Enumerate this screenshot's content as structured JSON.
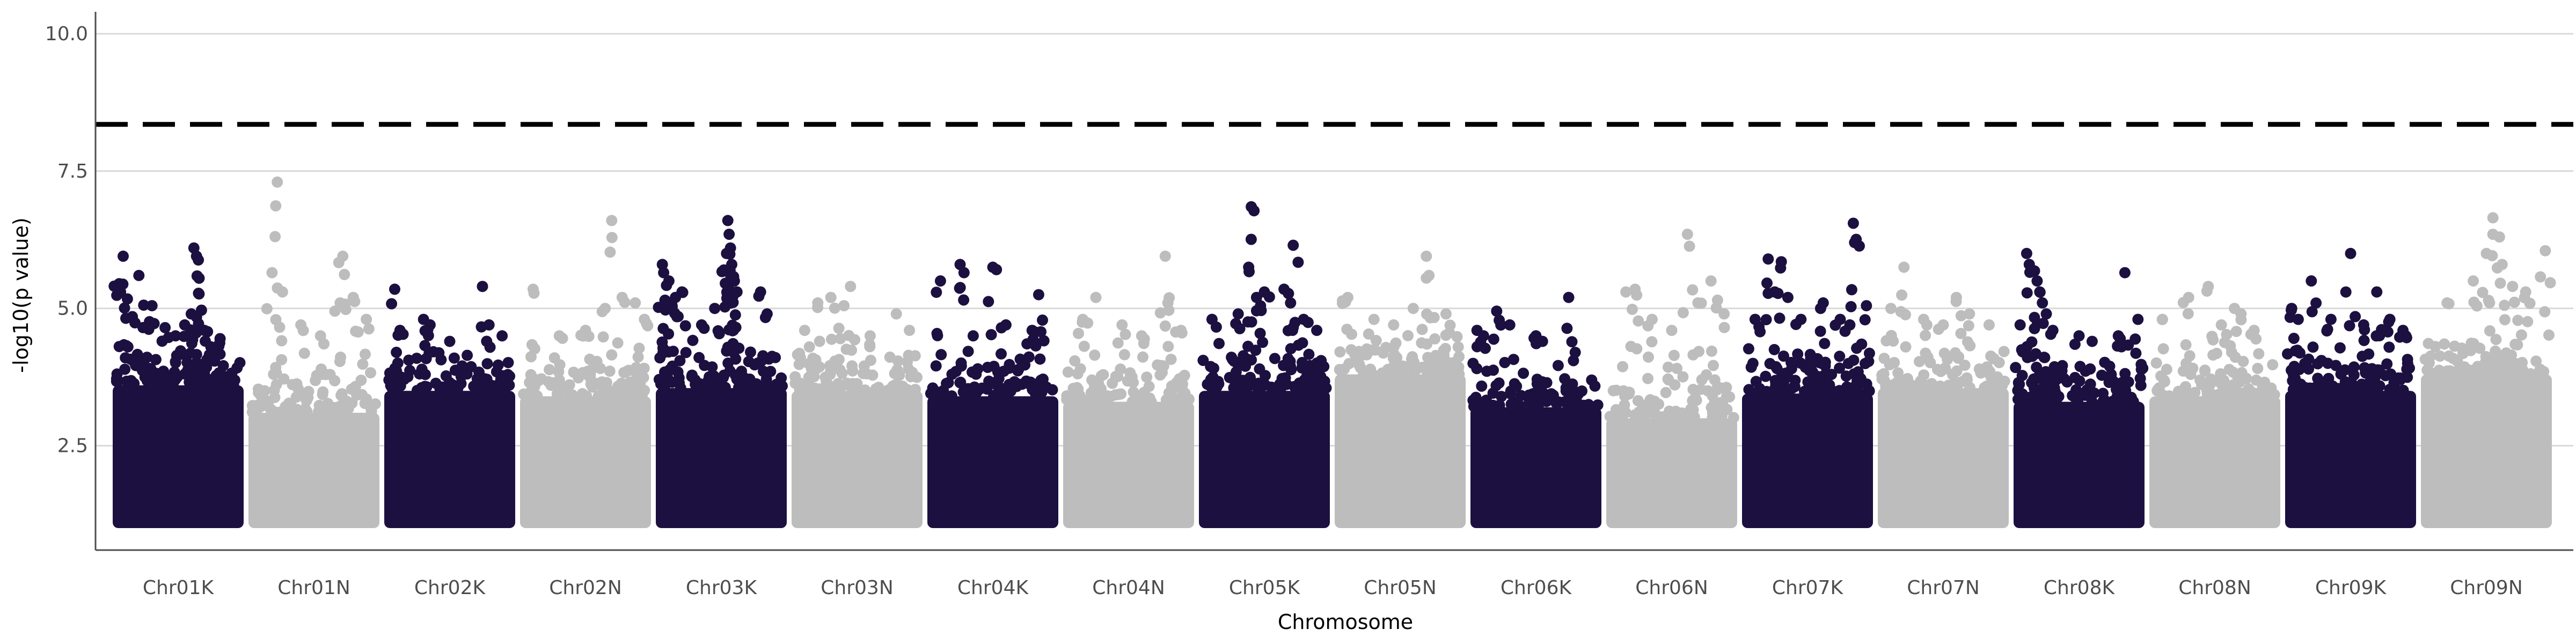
{
  "chart_data": {
    "type": "scatter",
    "subtype": "manhattan",
    "title": "",
    "xlabel": "Chromosome",
    "ylabel": "-log10(p value)",
    "ylim": [
      0.6,
      10.4
    ],
    "y_ticks": [
      {
        "value": 2.5,
        "label": "2.5"
      },
      {
        "value": 5.0,
        "label": "5.0"
      },
      {
        "value": 7.5,
        "label": "7.5"
      },
      {
        "value": 10.0,
        "label": "10.0"
      }
    ],
    "grid": {
      "horizontal_major": true,
      "vertical": false
    },
    "threshold": {
      "value": 8.35,
      "style": "dashed",
      "color": "#000000"
    },
    "colors": {
      "dark": "#1c1040",
      "light": "#bdbdbd",
      "grid": "#d9d9d9",
      "axis": "#4d4d4d"
    },
    "point_floor": 1.0,
    "categories": [
      "Chr01K",
      "Chr01N",
      "Chr02K",
      "Chr02N",
      "Chr03K",
      "Chr03N",
      "Chr04K",
      "Chr04N",
      "Chr05K",
      "Chr05N",
      "Chr06K",
      "Chr06N",
      "Chr07K",
      "Chr07N",
      "Chr08K",
      "Chr08N",
      "Chr09K",
      "Chr09N"
    ],
    "series": [
      {
        "chromosome": "Chr01K",
        "color": "dark",
        "band_top": 3.6,
        "peak_points": [
          [
            0.05,
            5.45
          ],
          [
            0.06,
            5.3
          ],
          [
            0.08,
            5.95
          ],
          [
            0.15,
            4.85
          ],
          [
            0.2,
            5.6
          ],
          [
            0.3,
            5.05
          ],
          [
            0.4,
            4.65
          ],
          [
            0.48,
            4.5
          ],
          [
            0.55,
            4.7
          ],
          [
            0.6,
            4.9
          ],
          [
            0.62,
            6.1
          ],
          [
            0.64,
            5.95
          ],
          [
            0.66,
            5.55
          ],
          [
            0.7,
            4.6
          ],
          [
            0.75,
            4.3
          ],
          [
            0.82,
            4.45
          ]
        ]
      },
      {
        "chromosome": "Chr01N",
        "color": "light",
        "band_top": 3.1,
        "peak_points": [
          [
            0.18,
            5.65
          ],
          [
            0.22,
            7.3
          ],
          [
            0.26,
            5.3
          ],
          [
            0.4,
            4.7
          ],
          [
            0.55,
            4.5
          ],
          [
            0.7,
            5.1
          ],
          [
            0.72,
            5.95
          ],
          [
            0.8,
            5.2
          ],
          [
            0.9,
            4.8
          ]
        ]
      },
      {
        "chromosome": "Chr02K",
        "color": "dark",
        "band_top": 3.5,
        "peak_points": [
          [
            0.08,
            5.35
          ],
          [
            0.12,
            4.6
          ],
          [
            0.3,
            4.8
          ],
          [
            0.35,
            4.7
          ],
          [
            0.5,
            4.4
          ],
          [
            0.75,
            5.4
          ],
          [
            0.8,
            4.7
          ],
          [
            0.9,
            4.5
          ]
        ]
      },
      {
        "chromosome": "Chr02N",
        "color": "light",
        "band_top": 3.4,
        "peak_points": [
          [
            0.1,
            5.35
          ],
          [
            0.3,
            4.5
          ],
          [
            0.5,
            4.6
          ],
          [
            0.65,
            5.0
          ],
          [
            0.7,
            6.6
          ],
          [
            0.78,
            5.2
          ],
          [
            0.88,
            5.1
          ],
          [
            0.95,
            4.8
          ]
        ]
      },
      {
        "chromosome": "Chr03K",
        "color": "dark",
        "band_top": 3.55,
        "peak_points": [
          [
            0.05,
            5.8
          ],
          [
            0.06,
            5.65
          ],
          [
            0.1,
            5.5
          ],
          [
            0.15,
            5.2
          ],
          [
            0.2,
            5.3
          ],
          [
            0.35,
            4.7
          ],
          [
            0.45,
            5.0
          ],
          [
            0.52,
            5.7
          ],
          [
            0.54,
            6.0
          ],
          [
            0.55,
            6.6
          ],
          [
            0.56,
            6.35
          ],
          [
            0.57,
            6.1
          ],
          [
            0.58,
            5.8
          ],
          [
            0.6,
            5.5
          ],
          [
            0.62,
            5.3
          ],
          [
            0.8,
            5.3
          ],
          [
            0.85,
            4.9
          ]
        ]
      },
      {
        "chromosome": "Chr03N",
        "color": "light",
        "band_top": 3.5,
        "peak_points": [
          [
            0.1,
            4.6
          ],
          [
            0.2,
            5.1
          ],
          [
            0.3,
            5.2
          ],
          [
            0.4,
            5.05
          ],
          [
            0.45,
            5.4
          ],
          [
            0.6,
            4.5
          ],
          [
            0.8,
            4.9
          ],
          [
            0.9,
            4.6
          ]
        ]
      },
      {
        "chromosome": "Chr04K",
        "color": "dark",
        "band_top": 3.4,
        "peak_points": [
          [
            0.1,
            5.5
          ],
          [
            0.25,
            5.8
          ],
          [
            0.28,
            5.65
          ],
          [
            0.35,
            4.5
          ],
          [
            0.5,
            5.75
          ],
          [
            0.6,
            4.7
          ],
          [
            0.8,
            4.6
          ],
          [
            0.85,
            5.25
          ]
        ]
      },
      {
        "chromosome": "Chr04N",
        "color": "light",
        "band_top": 3.3,
        "peak_points": [
          [
            0.15,
            4.8
          ],
          [
            0.25,
            5.2
          ],
          [
            0.45,
            4.7
          ],
          [
            0.6,
            4.5
          ],
          [
            0.78,
            5.95
          ],
          [
            0.8,
            5.1
          ],
          [
            0.9,
            4.6
          ]
        ]
      },
      {
        "chromosome": "Chr05K",
        "color": "dark",
        "band_top": 3.5,
        "peak_points": [
          [
            0.1,
            4.8
          ],
          [
            0.3,
            4.9
          ],
          [
            0.38,
            5.75
          ],
          [
            0.4,
            6.85
          ],
          [
            0.44,
            5.2
          ],
          [
            0.5,
            5.3
          ],
          [
            0.65,
            5.35
          ],
          [
            0.7,
            5.1
          ],
          [
            0.72,
            6.15
          ],
          [
            0.8,
            4.8
          ],
          [
            0.9,
            4.6
          ]
        ]
      },
      {
        "chromosome": "Chr05N",
        "color": "light",
        "band_top": 3.8,
        "peak_points": [
          [
            0.1,
            5.2
          ],
          [
            0.3,
            4.8
          ],
          [
            0.45,
            4.7
          ],
          [
            0.6,
            5.0
          ],
          [
            0.7,
            5.95
          ],
          [
            0.72,
            5.6
          ],
          [
            0.85,
            4.9
          ]
        ]
      },
      {
        "chromosome": "Chr06K",
        "color": "dark",
        "band_top": 3.2,
        "peak_points": [
          [
            0.05,
            4.6
          ],
          [
            0.1,
            4.5
          ],
          [
            0.2,
            4.95
          ],
          [
            0.3,
            4.7
          ],
          [
            0.5,
            4.5
          ],
          [
            0.55,
            4.4
          ],
          [
            0.75,
            5.2
          ],
          [
            0.8,
            4.2
          ]
        ]
      },
      {
        "chromosome": "Chr06N",
        "color": "light",
        "band_top": 3.0,
        "peak_points": [
          [
            0.15,
            5.3
          ],
          [
            0.22,
            5.35
          ],
          [
            0.35,
            4.8
          ],
          [
            0.5,
            4.6
          ],
          [
            0.62,
            6.35
          ],
          [
            0.7,
            5.1
          ],
          [
            0.8,
            5.5
          ],
          [
            0.85,
            5.15
          ],
          [
            0.9,
            4.9
          ]
        ]
      },
      {
        "chromosome": "Chr07K",
        "color": "dark",
        "band_top": 3.45,
        "peak_points": [
          [
            0.1,
            4.8
          ],
          [
            0.2,
            5.9
          ],
          [
            0.25,
            5.3
          ],
          [
            0.3,
            5.85
          ],
          [
            0.35,
            5.2
          ],
          [
            0.45,
            4.8
          ],
          [
            0.6,
            5.0
          ],
          [
            0.62,
            5.1
          ],
          [
            0.75,
            4.8
          ],
          [
            0.85,
            6.55
          ],
          [
            0.86,
            6.2
          ],
          [
            0.95,
            5.05
          ]
        ]
      },
      {
        "chromosome": "Chr07N",
        "color": "light",
        "band_top": 3.55,
        "peak_points": [
          [
            0.1,
            5.0
          ],
          [
            0.2,
            5.75
          ],
          [
            0.35,
            4.8
          ],
          [
            0.5,
            4.7
          ],
          [
            0.6,
            5.2
          ],
          [
            0.7,
            4.9
          ],
          [
            0.85,
            4.7
          ]
        ]
      },
      {
        "chromosome": "Chr08K",
        "color": "dark",
        "band_top": 3.3,
        "peak_points": [
          [
            0.05,
            4.7
          ],
          [
            0.1,
            6.0
          ],
          [
            0.12,
            5.8
          ],
          [
            0.18,
            5.5
          ],
          [
            0.2,
            5.3
          ],
          [
            0.22,
            5.1
          ],
          [
            0.25,
            4.9
          ],
          [
            0.3,
            4.6
          ],
          [
            0.5,
            4.5
          ],
          [
            0.6,
            4.4
          ],
          [
            0.8,
            4.5
          ],
          [
            0.85,
            5.65
          ],
          [
            0.95,
            4.8
          ]
        ]
      },
      {
        "chromosome": "Chr08N",
        "color": "light",
        "band_top": 3.4,
        "peak_points": [
          [
            0.1,
            4.8
          ],
          [
            0.3,
            5.2
          ],
          [
            0.45,
            5.4
          ],
          [
            0.55,
            4.7
          ],
          [
            0.65,
            5.0
          ],
          [
            0.7,
            4.9
          ],
          [
            0.8,
            4.6
          ]
        ]
      },
      {
        "chromosome": "Chr09K",
        "color": "dark",
        "band_top": 3.5,
        "peak_points": [
          [
            0.05,
            5.0
          ],
          [
            0.1,
            4.8
          ],
          [
            0.2,
            5.5
          ],
          [
            0.35,
            4.8
          ],
          [
            0.5,
            6.0
          ],
          [
            0.6,
            4.7
          ],
          [
            0.7,
            5.3
          ],
          [
            0.8,
            4.8
          ],
          [
            0.9,
            4.6
          ]
        ]
      },
      {
        "chromosome": "Chr09N",
        "color": "light",
        "band_top": 3.8,
        "peak_points": [
          [
            0.2,
            5.1
          ],
          [
            0.4,
            5.5
          ],
          [
            0.5,
            6.0
          ],
          [
            0.55,
            6.65
          ],
          [
            0.6,
            6.3
          ],
          [
            0.62,
            5.8
          ],
          [
            0.7,
            5.4
          ],
          [
            0.8,
            5.3
          ],
          [
            0.95,
            6.05
          ]
        ]
      }
    ]
  }
}
